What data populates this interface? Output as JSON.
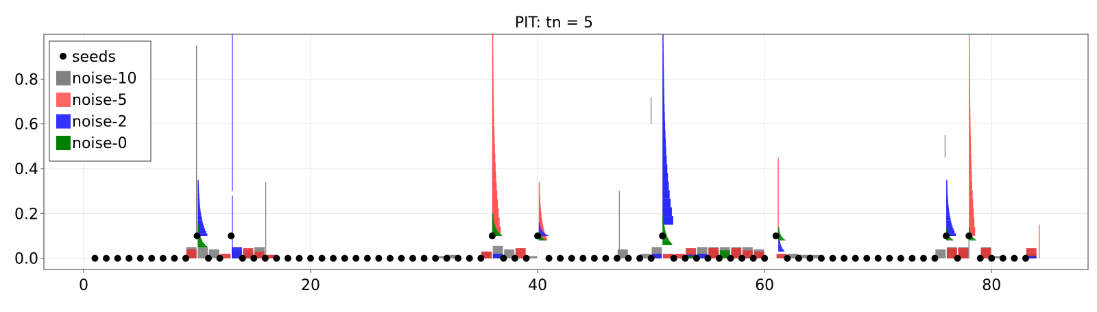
{
  "chart_data": {
    "type": "bar",
    "title": "PIT: tn = 5",
    "xlabel": "",
    "ylabel": "",
    "xlim": [
      -3.5,
      88.5
    ],
    "ylim": [
      -0.05,
      1.0
    ],
    "xticks": [
      0,
      20,
      40,
      60,
      80
    ],
    "xtick_labels": [
      "0",
      "20",
      "40",
      "60",
      "80"
    ],
    "yticks": [
      0.0,
      0.2,
      0.4,
      0.6,
      0.8
    ],
    "ytick_labels": [
      "0.0",
      "0.2",
      "0.4",
      "0.6",
      "0.8"
    ],
    "grid": true,
    "legend": {
      "position": "top-left",
      "entries": [
        {
          "label": "seeds",
          "marker": "dot",
          "color": "#000000"
        },
        {
          "label": "noise-10",
          "marker": "square",
          "color": "#808080"
        },
        {
          "label": "noise-5",
          "marker": "square",
          "color": "#ff6666"
        },
        {
          "label": "noise-2",
          "marker": "square",
          "color": "#3333ff"
        },
        {
          "label": "noise-0",
          "marker": "square",
          "color": "#008000"
        }
      ]
    },
    "seeds": {
      "name": "seeds",
      "color": "#000000",
      "x": [
        1,
        2,
        3,
        4,
        5,
        6,
        7,
        8,
        9,
        10,
        11,
        12,
        13,
        14,
        15,
        16,
        17,
        18,
        19,
        20,
        21,
        22,
        23,
        24,
        25,
        26,
        27,
        28,
        29,
        30,
        31,
        32,
        33,
        34,
        35,
        36,
        37,
        38,
        39,
        40,
        41,
        42,
        43,
        44,
        45,
        46,
        47,
        48,
        49,
        50,
        51,
        52,
        53,
        54,
        55,
        56,
        57,
        58,
        59,
        60,
        61,
        62,
        63,
        64,
        65,
        66,
        67,
        68,
        69,
        70,
        71,
        72,
        73,
        74,
        75,
        76,
        77,
        78,
        79,
        80,
        81,
        82,
        83
      ],
      "y": [
        0,
        0,
        0,
        0,
        0,
        0,
        0,
        0,
        0,
        0.1,
        0,
        0,
        0.1,
        0,
        0,
        0,
        0,
        0,
        0,
        0,
        0,
        0,
        0,
        0,
        0,
        0,
        0,
        0,
        0,
        0,
        0,
        0,
        0,
        0,
        0,
        0.1,
        0,
        0,
        0,
        0.1,
        0,
        0,
        0,
        0,
        0,
        0,
        0,
        0,
        0,
        0,
        0.1,
        0,
        0,
        0,
        0,
        0,
        0,
        0,
        0,
        0,
        0.1,
        0,
        0,
        0,
        0,
        0,
        0,
        0,
        0,
        0,
        0,
        0,
        0,
        0,
        0,
        0.1,
        0,
        0.1,
        0,
        0,
        0,
        0,
        0
      ]
    },
    "noise_bars": [
      {
        "series": "noise-10",
        "color": "#808080",
        "x": 9.5,
        "width": 0.9,
        "y": 0.05
      },
      {
        "series": "noise-10",
        "color": "#808080",
        "x": 10.5,
        "width": 0.9,
        "y": 0.05
      },
      {
        "series": "noise-10",
        "color": "#808080",
        "x": 11.5,
        "width": 0.9,
        "y": 0.04
      },
      {
        "series": "noise-10",
        "color": "#808080",
        "x": 13.5,
        "width": 0.9,
        "y": 0.035
      },
      {
        "series": "noise-10",
        "color": "#808080",
        "x": 14.5,
        "width": 0.9,
        "y": 0.03
      },
      {
        "series": "noise-10",
        "color": "#808080",
        "x": 15.5,
        "width": 0.9,
        "y": 0.05
      },
      {
        "series": "noise-10",
        "color": "#808080",
        "x": 16.5,
        "width": 0.9,
        "y": 0.015
      },
      {
        "series": "noise-10",
        "color": "#808080",
        "x": 31.5,
        "width": 0.9,
        "y": 0.01
      },
      {
        "series": "noise-10",
        "color": "#808080",
        "x": 32.5,
        "width": 0.9,
        "y": 0.015
      },
      {
        "series": "noise-10",
        "color": "#808080",
        "x": 35.5,
        "width": 0.9,
        "y": 0.03
      },
      {
        "series": "noise-10",
        "color": "#808080",
        "x": 36.5,
        "width": 0.9,
        "y": 0.055
      },
      {
        "series": "noise-10",
        "color": "#808080",
        "x": 37.5,
        "width": 0.9,
        "y": 0.04
      },
      {
        "series": "noise-10",
        "color": "#808080",
        "x": 39.5,
        "width": 0.9,
        "y": 0.01
      },
      {
        "series": "noise-10",
        "color": "#808080",
        "x": 47.5,
        "width": 0.9,
        "y": 0.04
      },
      {
        "series": "noise-10",
        "color": "#808080",
        "x": 49.5,
        "width": 0.9,
        "y": 0.02
      },
      {
        "series": "noise-10",
        "color": "#808080",
        "x": 50.5,
        "width": 0.9,
        "y": 0.05
      },
      {
        "series": "noise-10",
        "color": "#808080",
        "x": 53.5,
        "width": 0.9,
        "y": 0.02
      },
      {
        "series": "noise-10",
        "color": "#808080",
        "x": 54.5,
        "width": 0.9,
        "y": 0.05
      },
      {
        "series": "noise-10",
        "color": "#808080",
        "x": 55.5,
        "width": 0.9,
        "y": 0.05
      },
      {
        "series": "noise-10",
        "color": "#808080",
        "x": 56.5,
        "width": 0.9,
        "y": 0.05
      },
      {
        "series": "noise-10",
        "color": "#808080",
        "x": 57.5,
        "width": 0.9,
        "y": 0.05
      },
      {
        "series": "noise-10",
        "color": "#808080",
        "x": 58.5,
        "width": 0.9,
        "y": 0.05
      },
      {
        "series": "noise-10",
        "color": "#808080",
        "x": 59.5,
        "width": 0.9,
        "y": 0.04
      },
      {
        "series": "noise-10",
        "color": "#808080",
        "x": 62.5,
        "width": 0.9,
        "y": 0.02
      },
      {
        "series": "noise-10",
        "color": "#808080",
        "x": 63.5,
        "width": 0.9,
        "y": 0.015
      },
      {
        "series": "noise-10",
        "color": "#808080",
        "x": 64.5,
        "width": 0.9,
        "y": 0.015
      },
      {
        "series": "noise-10",
        "color": "#808080",
        "x": 75.5,
        "width": 0.9,
        "y": 0.04
      },
      {
        "series": "noise-10",
        "color": "#808080",
        "x": 76.5,
        "width": 0.9,
        "y": 0.05
      },
      {
        "series": "noise-10",
        "color": "#808080",
        "x": 77.5,
        "width": 0.9,
        "y": 0.05
      },
      {
        "series": "noise-10",
        "color": "#808080",
        "x": 79.5,
        "width": 0.9,
        "y": 0.05
      },
      {
        "series": "noise-10",
        "color": "#808080",
        "x": 80.5,
        "width": 0.9,
        "y": 0.01
      },
      {
        "series": "noise-10",
        "color": "#808080",
        "x": 83.5,
        "width": 0.9,
        "y": 0.02
      },
      {
        "series": "noise-5",
        "color": "#dd3333",
        "x": 9.5,
        "width": 0.9,
        "y": 0.04
      },
      {
        "series": "noise-5",
        "color": "#dd3333",
        "x": 12.5,
        "width": 0.9,
        "y": 0.02
      },
      {
        "series": "noise-5",
        "color": "#dd3333",
        "x": 14.5,
        "width": 0.9,
        "y": 0.045
      },
      {
        "series": "noise-5",
        "color": "#dd3333",
        "x": 15.5,
        "width": 0.9,
        "y": 0.03
      },
      {
        "series": "noise-5",
        "color": "#dd3333",
        "x": 16.5,
        "width": 0.9,
        "y": 0.015
      },
      {
        "series": "noise-5",
        "color": "#dd3333",
        "x": 35.5,
        "width": 0.9,
        "y": 0.03
      },
      {
        "series": "noise-5",
        "color": "#dd3333",
        "x": 38.5,
        "width": 0.9,
        "y": 0.045
      },
      {
        "series": "noise-5",
        "color": "#dd3333",
        "x": 51.5,
        "width": 0.9,
        "y": 0.02
      },
      {
        "series": "noise-5",
        "color": "#dd3333",
        "x": 52.5,
        "width": 0.9,
        "y": 0.02
      },
      {
        "series": "noise-5",
        "color": "#dd3333",
        "x": 53.5,
        "width": 0.9,
        "y": 0.045
      },
      {
        "series": "noise-5",
        "color": "#dd3333",
        "x": 55.5,
        "width": 0.9,
        "y": 0.045
      },
      {
        "series": "noise-5",
        "color": "#dd3333",
        "x": 57.5,
        "width": 0.9,
        "y": 0.045
      },
      {
        "series": "noise-5",
        "color": "#dd3333",
        "x": 58.5,
        "width": 0.9,
        "y": 0.035
      },
      {
        "series": "noise-5",
        "color": "#dd3333",
        "x": 59.5,
        "width": 0.9,
        "y": 0.03
      },
      {
        "series": "noise-5",
        "color": "#dd3333",
        "x": 61.5,
        "width": 0.9,
        "y": 0.02
      },
      {
        "series": "noise-5",
        "color": "#dd3333",
        "x": 76.5,
        "width": 0.9,
        "y": 0.045
      },
      {
        "series": "noise-5",
        "color": "#dd3333",
        "x": 77.5,
        "width": 0.9,
        "y": 0.045
      },
      {
        "series": "noise-5",
        "color": "#dd3333",
        "x": 79.5,
        "width": 0.9,
        "y": 0.045
      },
      {
        "series": "noise-5",
        "color": "#dd3333",
        "x": 83.5,
        "width": 0.9,
        "y": 0.045
      },
      {
        "series": "noise-2",
        "color": "#2222ee",
        "x": 13.5,
        "width": 0.9,
        "y": 0.05
      },
      {
        "series": "noise-2",
        "color": "#2222ee",
        "x": 36.5,
        "width": 0.9,
        "y": 0.02
      },
      {
        "series": "noise-2",
        "color": "#2222ee",
        "x": 50.5,
        "width": 0.9,
        "y": 0.02
      },
      {
        "series": "noise-2",
        "color": "#2222ee",
        "x": 53.5,
        "width": 0.9,
        "y": 0.015
      },
      {
        "series": "noise-2",
        "color": "#2222ee",
        "x": 54.5,
        "width": 0.9,
        "y": 0.02
      },
      {
        "series": "noise-2",
        "color": "#2222ee",
        "x": 83.5,
        "width": 0.9,
        "y": 0.01
      },
      {
        "series": "noise-0",
        "color": "#008000",
        "x": 56.5,
        "width": 0.9,
        "y": 0.035
      },
      {
        "series": "noise-0",
        "color": "#008000",
        "x": 53.5,
        "width": 0.9,
        "y": 0.01
      }
    ],
    "spikes": [
      {
        "series": "noise-10",
        "color": "#777777",
        "x": 9.95,
        "y0": 0.1,
        "y1": 0.95
      },
      {
        "series": "noise-10",
        "color": "#777777",
        "x": 16.05,
        "y0": 0.0,
        "y1": 0.34
      },
      {
        "series": "noise-10",
        "color": "#777777",
        "x": 47.2,
        "y0": 0.0,
        "y1": 0.3
      },
      {
        "series": "noise-10",
        "color": "#777777",
        "x": 50.0,
        "y0": 0.6,
        "y1": 0.72
      },
      {
        "series": "noise-10",
        "color": "#777777",
        "x": 75.9,
        "y0": 0.45,
        "y1": 0.55
      },
      {
        "series": "noise-10",
        "color": "#777777",
        "x": 78.0,
        "y0": 0.0,
        "y1": 0.1
      },
      {
        "series": "noise-5",
        "color": "#ff4444",
        "x": 61.2,
        "y0": 0.1,
        "y1": 0.45
      },
      {
        "series": "noise-5",
        "color": "#ff4444",
        "x": 84.2,
        "y0": 0.0,
        "y1": 0.15
      },
      {
        "series": "noise-2",
        "color": "#2222ff",
        "x": 13.1,
        "y0": 0.3,
        "y1": 1.0
      },
      {
        "series": "noise-2",
        "color": "#2222ff",
        "x": 13.1,
        "y0": 0.0,
        "y1": 0.28
      }
    ],
    "distributions": [
      {
        "series": "noise-2",
        "color": "#2a2aff",
        "base_x": 10.05,
        "y_min": 0.1,
        "y_max": 0.35,
        "peak_width": 0.8
      },
      {
        "series": "noise-5",
        "color": "#ff5555",
        "base_x": 36.0,
        "y_min": 0.1,
        "y_max": 1.0,
        "peak_width": 0.7
      },
      {
        "series": "noise-5",
        "color": "#ff5555",
        "base_x": 40.1,
        "y_min": 0.08,
        "y_max": 0.34,
        "peak_width": 0.7
      },
      {
        "series": "noise-2",
        "color": "#2a2aff",
        "base_x": 40.1,
        "y_min": 0.1,
        "y_max": 0.16,
        "peak_width": 0.8
      },
      {
        "series": "noise-2",
        "color": "#2a2aff",
        "base_x": 51.0,
        "y_min": 0.15,
        "y_max": 1.0,
        "peak_width": 0.9
      },
      {
        "series": "noise-2",
        "color": "#2a2aff",
        "base_x": 61.2,
        "y_min": 0.03,
        "y_max": 0.12,
        "peak_width": 0.5
      },
      {
        "series": "noise-2",
        "color": "#2a2aff",
        "base_x": 76.0,
        "y_min": 0.1,
        "y_max": 0.35,
        "peak_width": 0.8
      },
      {
        "series": "noise-5",
        "color": "#ff5555",
        "base_x": 78.0,
        "y_min": 0.1,
        "y_max": 1.0,
        "peak_width": 0.5
      },
      {
        "series": "noise-0",
        "color": "#008800",
        "base_x": 10.05,
        "y_min": 0.05,
        "y_max": 0.15,
        "peak_width": 0.8
      },
      {
        "series": "noise-0",
        "color": "#008800",
        "base_x": 36.0,
        "y_min": 0.1,
        "y_max": 0.2,
        "peak_width": 0.8
      },
      {
        "series": "noise-0",
        "color": "#008800",
        "base_x": 40.1,
        "y_min": 0.08,
        "y_max": 0.13,
        "peak_width": 0.6
      },
      {
        "series": "noise-0",
        "color": "#008800",
        "base_x": 51.0,
        "y_min": 0.06,
        "y_max": 0.2,
        "peak_width": 0.8
      },
      {
        "series": "noise-0",
        "color": "#008800",
        "base_x": 61.2,
        "y_min": 0.08,
        "y_max": 0.14,
        "peak_width": 0.6
      },
      {
        "series": "noise-0",
        "color": "#008800",
        "base_x": 76.0,
        "y_min": 0.08,
        "y_max": 0.14,
        "peak_width": 0.6
      },
      {
        "series": "noise-0",
        "color": "#008800",
        "base_x": 78.0,
        "y_min": 0.08,
        "y_max": 0.14,
        "peak_width": 0.6
      }
    ]
  }
}
